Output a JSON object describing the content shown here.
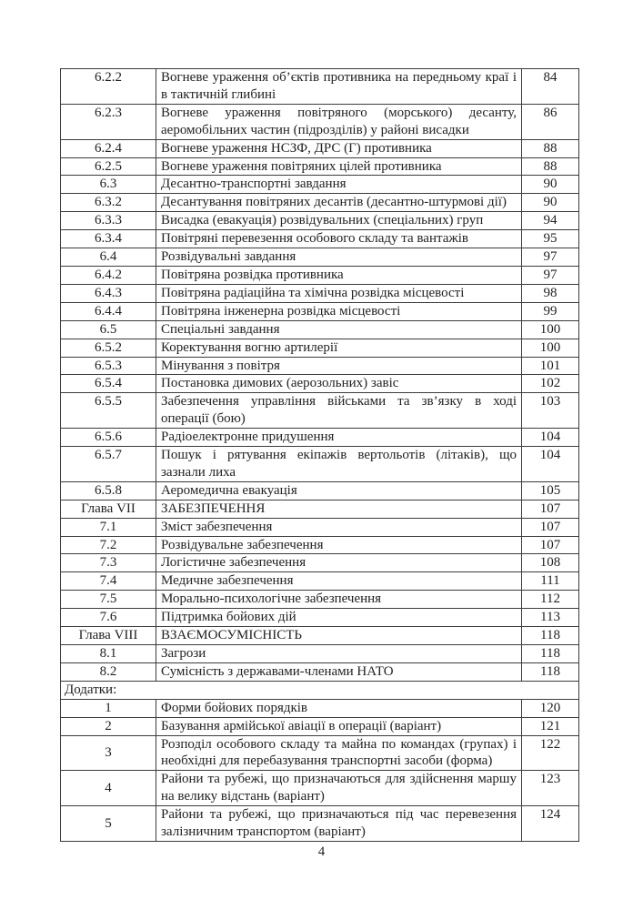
{
  "page": {
    "footer_page_number": "4"
  },
  "colors": {
    "text": "#222222",
    "border": "#3b3b3b",
    "background": "#ffffff"
  },
  "toc": {
    "columns": [
      "number",
      "title",
      "page"
    ],
    "rows": [
      {
        "type": "entry",
        "num": "6.2.2",
        "title": "Вогневе ураження об’єктів противника на передньому краї і в тактичній глибині",
        "page": "84"
      },
      {
        "type": "entry",
        "num": "6.2.3",
        "title": "Вогневе ураження повітряного (морського) десанту, аеромобільних частин (підрозділів) у районі висадки",
        "page": "86"
      },
      {
        "type": "entry",
        "num": "6.2.4",
        "title": "Вогневе ураження НСЗФ, ДРС (Г) противника",
        "page": "88"
      },
      {
        "type": "entry",
        "num": "6.2.5",
        "title": "Вогневе ураження повітряних цілей противника",
        "page": "88"
      },
      {
        "type": "entry",
        "num": "6.3",
        "title": "Десантно-транспортні завдання",
        "page": "90"
      },
      {
        "type": "entry",
        "num": "6.3.2",
        "title": "Десантування повітряних десантів (десантно-штурмові дії)",
        "page": "90"
      },
      {
        "type": "entry",
        "num": "6.3.3",
        "title": "Висадка (евакуація) розвідувальних (спеціальних) груп",
        "page": "94"
      },
      {
        "type": "entry",
        "num": "6.3.4",
        "title": "Повітряні перевезення особового складу та вантажів",
        "page": "95"
      },
      {
        "type": "entry",
        "num": "6.4",
        "title": "Розвідувальні завдання",
        "page": "97"
      },
      {
        "type": "entry",
        "num": "6.4.2",
        "title": "Повітряна розвідка противника",
        "page": "97"
      },
      {
        "type": "entry",
        "num": "6.4.3",
        "title": "Повітряна радіаційна та хімічна розвідка місцевості",
        "page": "98"
      },
      {
        "type": "entry",
        "num": "6.4.4",
        "title": "Повітряна інженерна розвідка місцевості",
        "page": "99"
      },
      {
        "type": "entry",
        "num": "6.5",
        "title": "Спеціальні завдання",
        "page": "100"
      },
      {
        "type": "entry",
        "num": "6.5.2",
        "title": "Коректування вогню артилерії",
        "page": "100"
      },
      {
        "type": "entry",
        "num": "6.5.3",
        "title": "Мінування з повітря",
        "page": "101"
      },
      {
        "type": "entry",
        "num": "6.5.4",
        "title": "Постановка димових (аерозольних) завіс",
        "page": "102"
      },
      {
        "type": "entry",
        "num": "6.5.5",
        "title": "Забезпечення управління військами та зв’язку в ході операції (бою)",
        "page": "103"
      },
      {
        "type": "entry",
        "num": "6.5.6",
        "title": "Радіоелектронне придушення",
        "page": "104"
      },
      {
        "type": "entry",
        "num": "6.5.7",
        "title": "Пошук і рятування екіпажів вертольотів (літаків), що зазнали лиха",
        "page": "104"
      },
      {
        "type": "entry",
        "num": "6.5.8",
        "title": "Аеромедична евакуація",
        "page": "105"
      },
      {
        "type": "chapter",
        "num": "Глава VII",
        "title": "ЗАБЕЗПЕЧЕННЯ",
        "page": "107"
      },
      {
        "type": "entry",
        "num": "7.1",
        "title": "Зміст забезпечення",
        "page": "107"
      },
      {
        "type": "entry",
        "num": "7.2",
        "title": "Розвідувальне забезпечення",
        "page": "107"
      },
      {
        "type": "entry",
        "num": "7.3",
        "title": "Логістичне забезпечення",
        "page": "108"
      },
      {
        "type": "entry",
        "num": "7.4",
        "title": "Медичне забезпечення",
        "page": "111"
      },
      {
        "type": "entry",
        "num": "7.5",
        "title": "Морально-психологічне забезпечення",
        "page": "112"
      },
      {
        "type": "entry",
        "num": "7.6",
        "title": "Підтримка бойових дій",
        "page": "113"
      },
      {
        "type": "chapter",
        "num": "Глава VIII",
        "title": "ВЗАЄМОСУМІСНІСТЬ",
        "page": "118"
      },
      {
        "type": "entry",
        "num": "8.1",
        "title": "Загрози",
        "page": "118"
      },
      {
        "type": "entry",
        "num": "8.2",
        "title": "Сумісність з державами-членами НАТО",
        "page": "118"
      },
      {
        "type": "section",
        "label": "Додатки:"
      },
      {
        "type": "appendix",
        "num": "1",
        "title": "Форми бойових порядків",
        "page": "120"
      },
      {
        "type": "appendix",
        "num": "2",
        "title": "Базування армійської авіації в операції (варіант)",
        "page": "121"
      },
      {
        "type": "appendix",
        "num": "3",
        "title": "Розподіл особового складу та майна по командах (групах) і необхідні для перебазування транспортні засоби (форма)",
        "page": "122"
      },
      {
        "type": "appendix",
        "num": "4",
        "title": "Райони та рубежі, що призначаються для здійснення маршу на велику відстань (варіант)",
        "page": "123"
      },
      {
        "type": "appendix",
        "num": "5",
        "title": "Райони та рубежі, що призначаються під час перевезення залізничним транспортом (варіант)",
        "page": "124"
      }
    ]
  }
}
